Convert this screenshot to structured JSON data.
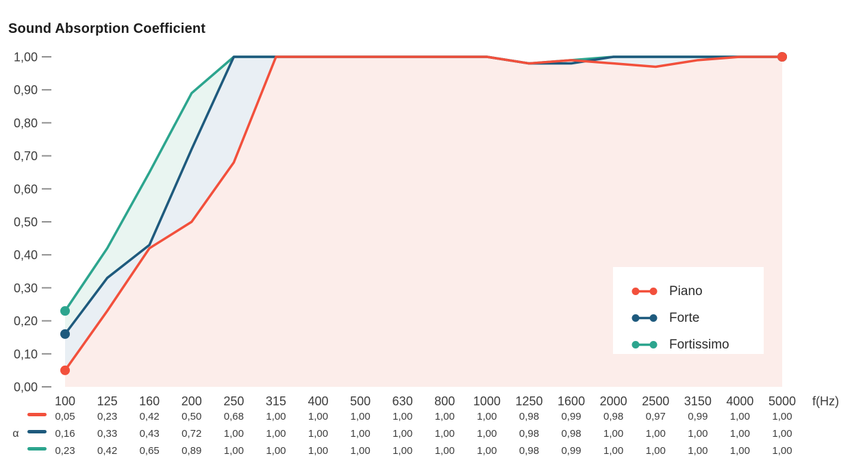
{
  "chart_data": {
    "type": "line",
    "title": "Sound Absorption Coefficient",
    "x_axis_label": "f(Hz)",
    "y_axis_symbol": "α",
    "categories": [
      "100",
      "125",
      "160",
      "200",
      "250",
      "315",
      "400",
      "500",
      "630",
      "800",
      "1000",
      "1250",
      "1600",
      "2000",
      "2500",
      "3150",
      "4000",
      "5000"
    ],
    "y_ticks": [
      "1,00",
      "0,90",
      "0,80",
      "0,70",
      "0,60",
      "0,50",
      "0,40",
      "0,30",
      "0,20",
      "0,10",
      "0,00"
    ],
    "ylim": [
      0,
      1
    ],
    "grid": false,
    "legend_position": "right-middle",
    "decimal_separator": ",",
    "series": [
      {
        "name": "Piano",
        "color": "#F2503C",
        "fill": "#FCEDEA",
        "values": [
          0.05,
          0.23,
          0.42,
          0.5,
          0.68,
          1.0,
          1.0,
          1.0,
          1.0,
          1.0,
          1.0,
          0.98,
          0.99,
          0.98,
          0.97,
          0.99,
          1.0,
          1.0
        ]
      },
      {
        "name": "Forte",
        "color": "#1E5A7D",
        "fill": "#E9EFF4",
        "values": [
          0.16,
          0.33,
          0.43,
          0.72,
          1.0,
          1.0,
          1.0,
          1.0,
          1.0,
          1.0,
          1.0,
          0.98,
          0.98,
          1.0,
          1.0,
          1.0,
          1.0,
          1.0
        ]
      },
      {
        "name": "Fortissimo",
        "color": "#2CA58E",
        "fill": "#E9F5F1",
        "values": [
          0.23,
          0.42,
          0.65,
          0.89,
          1.0,
          1.0,
          1.0,
          1.0,
          1.0,
          1.0,
          1.0,
          0.98,
          0.99,
          1.0,
          1.0,
          1.0,
          1.0,
          1.0
        ]
      }
    ],
    "text_colors": {
      "title": "#1d1d1d",
      "axis_labels": "#3d3d3d",
      "table_values": "#3d3d3d",
      "tick_dash": "#8e8e8e"
    }
  }
}
